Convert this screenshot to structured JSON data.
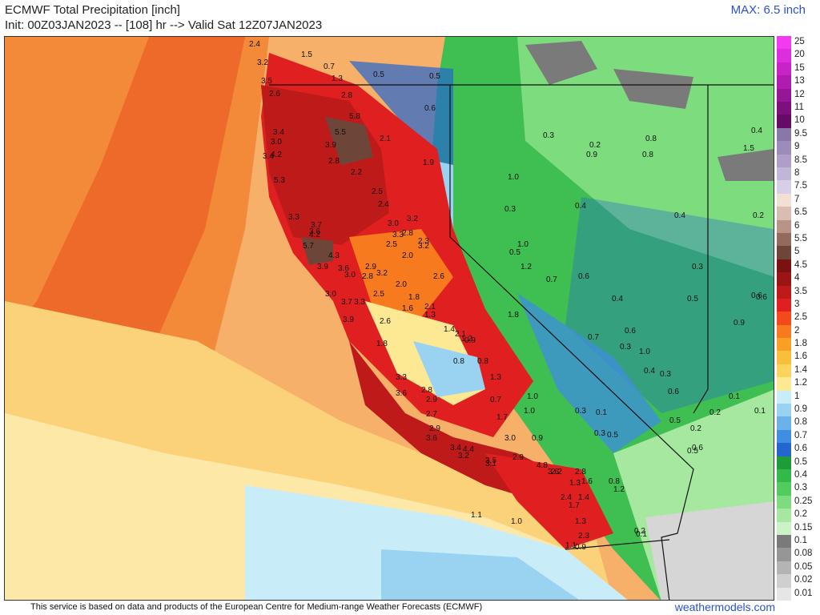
{
  "header": {
    "title": "ECMWF Total Precipitation [inch]",
    "init": "Init: 00Z03JAN2023 -- [108] hr --> Valid Sat 12Z07JAN2023",
    "max": "MAX: 6.5 inch"
  },
  "footer": {
    "credit": "This service is based on data and products of the European Centre for Medium-range Weather Forecasts (ECMWF)",
    "site": "weathermodels.com"
  },
  "legend": [
    {
      "label": "25",
      "color": "#f23af2"
    },
    {
      "label": "20",
      "color": "#dd2edd"
    },
    {
      "label": "15",
      "color": "#c723c7"
    },
    {
      "label": "13",
      "color": "#b01cb0"
    },
    {
      "label": "12",
      "color": "#971597"
    },
    {
      "label": "11",
      "color": "#7e0f7e"
    },
    {
      "label": "10",
      "color": "#650a65"
    },
    {
      "label": "9.5",
      "color": "#8878a8"
    },
    {
      "label": "9",
      "color": "#9b8cba"
    },
    {
      "label": "8.5",
      "color": "#ad9fc9"
    },
    {
      "label": "8",
      "color": "#c2b6d8"
    },
    {
      "label": "7.5",
      "color": "#d7cfe6"
    },
    {
      "label": "7",
      "color": "#f3e0d5"
    },
    {
      "label": "6.5",
      "color": "#d9bdb0"
    },
    {
      "label": "6",
      "color": "#b99385"
    },
    {
      "label": "5.5",
      "color": "#946a5e"
    },
    {
      "label": "5",
      "color": "#6e4539"
    },
    {
      "label": "4.5",
      "color": "#7a1212"
    },
    {
      "label": "4",
      "color": "#9c1515"
    },
    {
      "label": "3.5",
      "color": "#bf1a1a"
    },
    {
      "label": "3",
      "color": "#e02020"
    },
    {
      "label": "2.5",
      "color": "#f24a1c"
    },
    {
      "label": "2",
      "color": "#f77a1e"
    },
    {
      "label": "1.8",
      "color": "#f9a024"
    },
    {
      "label": "1.6",
      "color": "#fbbe3a"
    },
    {
      "label": "1.4",
      "color": "#fcd45c"
    },
    {
      "label": "1.2",
      "color": "#fde894"
    },
    {
      "label": "1",
      "color": "#c8ecf8"
    },
    {
      "label": "0.9",
      "color": "#9ad3f2"
    },
    {
      "label": "0.8",
      "color": "#6cb2ea"
    },
    {
      "label": "0.7",
      "color": "#3f8ee0"
    },
    {
      "label": "0.6",
      "color": "#2366d0"
    },
    {
      "label": "0.5",
      "color": "#1f9c3a"
    },
    {
      "label": "0.4",
      "color": "#33b84a"
    },
    {
      "label": "0.3",
      "color": "#52cc5e"
    },
    {
      "label": "0.25",
      "color": "#7ddc7d"
    },
    {
      "label": "0.2",
      "color": "#a6e8a0"
    },
    {
      "label": "0.15",
      "color": "#ccf3c5"
    },
    {
      "label": "0.1",
      "color": "#7a7a7a"
    },
    {
      "label": "0.08",
      "color": "#969696"
    },
    {
      "label": "0.05",
      "color": "#b4b4b4"
    },
    {
      "label": "0.02",
      "color": "#cfcfcf"
    },
    {
      "label": "0.01",
      "color": "#e6e6e6"
    }
  ],
  "map_values": [
    "2.4",
    "3.2",
    "1.5",
    "0.7",
    "1.3",
    "3.5",
    "2.6",
    "2.8",
    "5.8",
    "3.4",
    "5.5",
    "3.0",
    "3.9",
    "2.1",
    "4.2",
    "2.8",
    "3.4",
    "2.2",
    "5.3",
    "1.9",
    "2.5",
    "2.4",
    "3.3",
    "3.2",
    "3.7",
    "3.6",
    "3.0",
    "4.2",
    "2.3",
    "3.3",
    "2.8",
    "5.7",
    "2.5",
    "4.3",
    "3.2",
    "2.0",
    "3.9",
    "3.6",
    "2.9",
    "3.0",
    "3.2",
    "2.8",
    "2.6",
    "2.0",
    "3.0",
    "2.5",
    "3.7",
    "3.3",
    "1.8",
    "1.6",
    "1.3",
    "2.1",
    "3.9",
    "2.6",
    "1.4",
    "2.1",
    "1.2",
    "0.9",
    "1.8",
    "0.8",
    "0.8",
    "3.3",
    "3.6",
    "2.8",
    "2.9",
    "1.3",
    "2.7",
    "2.9",
    "3.6",
    "3.4",
    "4.4",
    "3.2",
    "3.0",
    "3.1",
    "3.5",
    "4.8",
    "2.9",
    "3.6",
    "2.2",
    "2.8",
    "1.6",
    "1.3",
    "2.4",
    "1.4",
    "1.7",
    "1.1",
    "1.0",
    "1.3",
    "2.3",
    "0.9",
    "1.1",
    "0.2",
    "0.1",
    "0.5",
    "0.5",
    "0.6",
    "0.3",
    "0.2",
    "0.8",
    "0.8",
    "0.9",
    "1.0",
    "0.3",
    "0.4",
    "0.4",
    "0.5",
    "0.3",
    "0.7",
    "0.6",
    "0.4",
    "0.5",
    "0.6",
    "0.7",
    "0.3",
    "1.0",
    "0.9",
    "0.6",
    "0.6",
    "0.4",
    "0.3",
    "0.6",
    "0.3",
    "0.1",
    "0.2",
    "0.3",
    "0.2",
    "0.5",
    "0.5",
    "0.5",
    "0.6",
    "0.1",
    "0.1",
    "0.2",
    "0.4",
    "1.5",
    "1.2",
    "0.8",
    "1.0",
    "1.2",
    "1.8",
    "1.0",
    "0.9",
    "1.0",
    "1.7",
    "0.7"
  ]
}
